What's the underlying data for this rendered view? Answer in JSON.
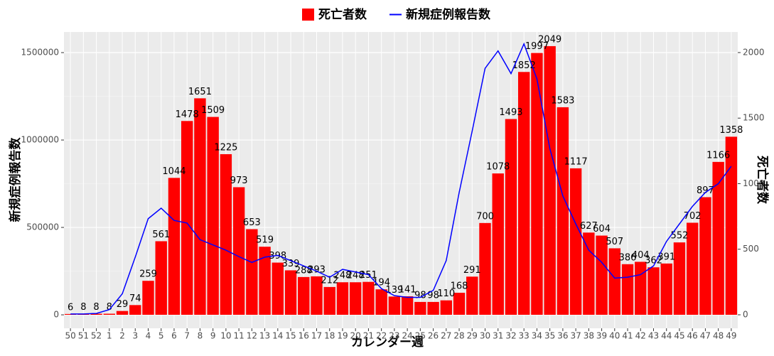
{
  "chart_data": {
    "type": "bar",
    "x_label": "カレンダー週",
    "y_label": "新規症例報告数",
    "y2_label": "死亡者数",
    "categories": [
      "50",
      "51",
      "52",
      "1",
      "2",
      "3",
      "4",
      "5",
      "6",
      "7",
      "8",
      "9",
      "10",
      "11",
      "12",
      "13",
      "14",
      "15",
      "16",
      "17",
      "18",
      "19",
      "20",
      "21",
      "22",
      "23",
      "24",
      "25",
      "26",
      "27",
      "28",
      "29",
      "30",
      "31",
      "32",
      "33",
      "34",
      "35",
      "36",
      "37",
      "38",
      "39",
      "40",
      "41",
      "42",
      "43",
      "44",
      "45",
      "46",
      "47",
      "48",
      "49"
    ],
    "series": [
      {
        "name": "死亡者数",
        "type": "bar",
        "axis": "y2",
        "color": "#ff0000",
        "values": [
          6,
          8,
          8,
          8,
          29,
          74,
          259,
          561,
          1044,
          1478,
          1651,
          1509,
          1225,
          973,
          653,
          519,
          398,
          339,
          288,
          293,
          212,
          248,
          248,
          251,
          194,
          139,
          141,
          98,
          98,
          110,
          168,
          291,
          700,
          1078,
          1493,
          1852,
          1997,
          2049,
          1583,
          1117,
          627,
          604,
          507,
          386,
          404,
          362,
          391,
          552,
          702,
          897,
          1166,
          1358
        ]
      },
      {
        "name": "新規症例報告数",
        "type": "line",
        "color": "#0000ff",
        "values": [
          5000,
          5000,
          8000,
          30000,
          120000,
          330000,
          550000,
          610000,
          540000,
          525000,
          430000,
          400000,
          370000,
          333000,
          300000,
          330000,
          340000,
          310000,
          280000,
          250000,
          215000,
          260000,
          245000,
          230000,
          150000,
          110000,
          100000,
          100000,
          140000,
          310000,
          700000,
          1050000,
          1410000,
          1510000,
          1380000,
          1550000,
          1350000,
          950000,
          680000,
          520000,
          370000,
          300000,
          210000,
          215000,
          230000,
          280000,
          420000,
          520000,
          620000,
          700000,
          750000,
          850000
        ]
      }
    ],
    "ylim": [
      -77000,
      1618000
    ],
    "yticks": [
      0,
      500000,
      1000000,
      1500000
    ],
    "y2lim": [
      -103,
      2157
    ],
    "y2ticks": [
      0,
      500,
      1000,
      1500,
      2000
    ],
    "grid": true,
    "legend": "top"
  }
}
